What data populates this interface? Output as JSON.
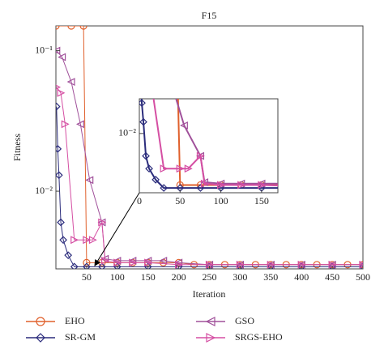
{
  "chart_data": {
    "type": "line",
    "title": "F15",
    "x_label": "Iteration",
    "y_label": "Fitness",
    "yscale": "log",
    "xlim": [
      0,
      500
    ],
    "xticks": [
      50,
      100,
      150,
      200,
      250,
      300,
      350,
      400,
      450,
      500
    ],
    "ylim": [
      0.0028,
      0.15
    ],
    "yticks": [
      {
        "value": 0.1,
        "label": "10⁻¹"
      },
      {
        "value": 0.01,
        "label": "10⁻²"
      }
    ],
    "series": [
      {
        "name": "EHO",
        "color": "#e0602c",
        "marker": "circle",
        "x": [
          0,
          25,
          45,
          50,
          75,
          100,
          125,
          150,
          175,
          200,
          225,
          250,
          275,
          300,
          325,
          350,
          375,
          400,
          425,
          450,
          475,
          500
        ],
        "values": [
          0.15,
          0.15,
          0.15,
          0.0031,
          0.0031,
          0.0031,
          0.0031,
          0.0031,
          0.0031,
          0.0031,
          0.003,
          0.003,
          0.003,
          0.003,
          0.003,
          0.003,
          0.003,
          0.003,
          0.003,
          0.003,
          0.003,
          0.003
        ]
      },
      {
        "name": "SR-GM",
        "color": "#2b2c7c",
        "marker": "diamond",
        "x": [
          1,
          3,
          5,
          8,
          12,
          20,
          30,
          50,
          75,
          100,
          150,
          200,
          250,
          300,
          350,
          400,
          450,
          500
        ],
        "values": [
          0.04,
          0.02,
          0.013,
          0.006,
          0.0045,
          0.0035,
          0.0029,
          0.0029,
          0.0029,
          0.0029,
          0.0029,
          0.0029,
          0.0029,
          0.0029,
          0.0029,
          0.0029,
          0.0029,
          0.0029
        ]
      },
      {
        "name": "GSO",
        "color": "#a0509a",
        "marker": "triangle-left",
        "x": [
          1,
          10,
          25,
          40,
          55,
          75,
          80,
          100,
          125,
          150,
          175,
          200,
          250,
          300,
          350,
          400,
          450,
          500
        ],
        "values": [
          0.1,
          0.09,
          0.06,
          0.03,
          0.012,
          0.006,
          0.0033,
          0.0032,
          0.0032,
          0.0032,
          0.0032,
          0.0031,
          0.003,
          0.003,
          0.003,
          0.003,
          0.003,
          0.003
        ]
      },
      {
        "name": "SRGS-EHO",
        "color": "#d54fa3",
        "marker": "triangle-right",
        "x": [
          1,
          8,
          15,
          30,
          50,
          60,
          75,
          80,
          100,
          125,
          150,
          200,
          250,
          300,
          350,
          400,
          450,
          500
        ],
        "values": [
          0.055,
          0.05,
          0.03,
          0.0045,
          0.0045,
          0.0045,
          0.006,
          0.0032,
          0.0031,
          0.0031,
          0.0031,
          0.003,
          0.003,
          0.003,
          0.003,
          0.003,
          0.003,
          0.003
        ]
      }
    ],
    "inset": {
      "xlim": [
        0,
        170
      ],
      "xticks": [
        0,
        50,
        100,
        150
      ],
      "ylim": [
        0.0026,
        0.022
      ],
      "yticks": [
        {
          "value": 0.01,
          "label": "10⁻²"
        }
      ]
    }
  }
}
